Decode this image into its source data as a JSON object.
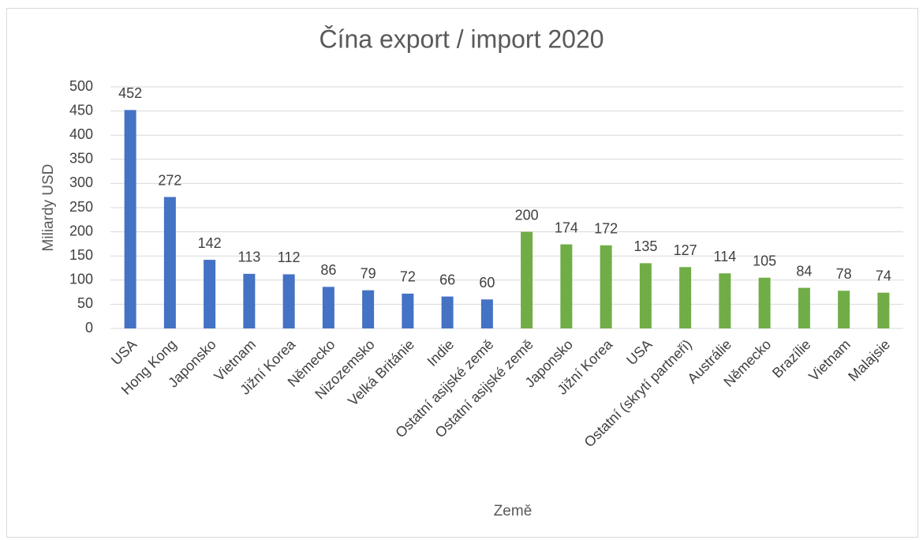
{
  "chart_data": {
    "type": "bar",
    "title": "Čína export / import 2020",
    "x_label": "Země",
    "y_label": "Miliardy USD",
    "categories": [
      "USA",
      "Hong Kong",
      "Japonsko",
      "Vietnam",
      "Jižní Korea",
      "Německo",
      "Nizozemsko",
      "Velká Británie",
      "Indie",
      "Ostatní asijské země",
      "Ostatní asijské země",
      "Japonsko",
      "Jižní Korea",
      "USA",
      "Ostatní (skrytí partneři)",
      "Austrálie",
      "Německo",
      "Brazílie",
      "Vietnam",
      "Malajsie"
    ],
    "values": [
      452,
      272,
      142,
      113,
      112,
      86,
      79,
      72,
      66,
      60,
      200,
      174,
      172,
      135,
      127,
      114,
      105,
      84,
      78,
      74
    ],
    "colors": [
      "#4472c4",
      "#4472c4",
      "#4472c4",
      "#4472c4",
      "#4472c4",
      "#4472c4",
      "#4472c4",
      "#4472c4",
      "#4472c4",
      "#4472c4",
      "#70ad47",
      "#70ad47",
      "#70ad47",
      "#70ad47",
      "#70ad47",
      "#70ad47",
      "#70ad47",
      "#70ad47",
      "#70ad47",
      "#70ad47"
    ],
    "ylim": [
      0,
      500
    ],
    "yticks": [
      0,
      50,
      100,
      150,
      200,
      250,
      300,
      350,
      400,
      450,
      500
    ],
    "grid": true
  }
}
